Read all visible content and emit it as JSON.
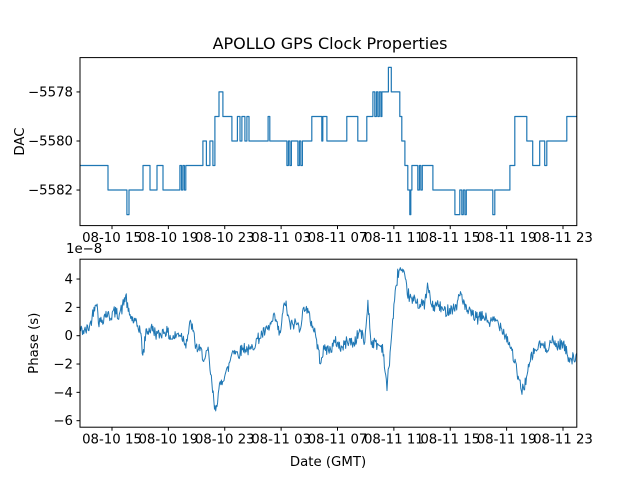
{
  "figure": {
    "title": "APOLLO GPS Clock Properties",
    "background": "#ffffff",
    "line_color": "#1f77b4",
    "text_color": "#000000",
    "legend": "none",
    "grid": false
  },
  "chart_data": [
    {
      "type": "line",
      "line_style": "step-post",
      "title": "APOLLO GPS Clock Properties",
      "xlabel": "",
      "ylabel": "DAC",
      "xlim": [
        12.73,
        47.98
      ],
      "ylim": [
        -5583.45,
        -5576.6
      ],
      "xtick_hours": [
        15,
        19,
        23,
        27,
        31,
        35,
        39,
        43,
        47
      ],
      "xtick_labels": [
        "08-10 15",
        "08-10 19",
        "08-10 23",
        "08-11 03",
        "08-11 07",
        "08-11 11",
        "08-11 15",
        "08-11 19",
        "08-11 23"
      ],
      "ytick_values": [
        -5578,
        -5580,
        -5582
      ],
      "ytick_labels": [
        "−5578",
        "−5580",
        "−5582"
      ],
      "steps": [
        [
          12.73,
          -5581
        ],
        [
          14.72,
          -5582
        ],
        [
          16.06,
          -5583
        ],
        [
          16.21,
          -5582
        ],
        [
          17.2,
          -5581
        ],
        [
          17.7,
          -5582
        ],
        [
          18.19,
          -5581
        ],
        [
          18.62,
          -5582
        ],
        [
          19.82,
          -5581
        ],
        [
          19.93,
          -5582
        ],
        [
          20.03,
          -5581
        ],
        [
          20.14,
          -5582
        ],
        [
          20.24,
          -5581
        ],
        [
          21.45,
          -5580
        ],
        [
          21.7,
          -5581
        ],
        [
          21.95,
          -5580
        ],
        [
          22.16,
          -5581
        ],
        [
          22.3,
          -5579
        ],
        [
          22.59,
          -5578
        ],
        [
          22.87,
          -5579
        ],
        [
          23.51,
          -5580
        ],
        [
          23.9,
          -5579
        ],
        [
          24.08,
          -5580
        ],
        [
          24.22,
          -5579
        ],
        [
          24.43,
          -5580
        ],
        [
          24.57,
          -5579
        ],
        [
          24.72,
          -5580
        ],
        [
          26.08,
          -5579
        ],
        [
          26.2,
          -5580
        ],
        [
          27.41,
          -5581
        ],
        [
          27.52,
          -5580
        ],
        [
          27.62,
          -5581
        ],
        [
          27.73,
          -5580
        ],
        [
          28.19,
          -5581
        ],
        [
          28.3,
          -5580
        ],
        [
          28.4,
          -5581
        ],
        [
          28.51,
          -5580
        ],
        [
          29.18,
          -5579
        ],
        [
          29.89,
          -5580
        ],
        [
          29.96,
          -5579
        ],
        [
          30.25,
          -5580
        ],
        [
          31.66,
          -5579
        ],
        [
          32.44,
          -5580
        ],
        [
          33.08,
          -5579
        ],
        [
          33.51,
          -5578
        ],
        [
          33.65,
          -5579
        ],
        [
          33.76,
          -5578
        ],
        [
          33.86,
          -5579
        ],
        [
          33.97,
          -5578
        ],
        [
          34.08,
          -5579
        ],
        [
          34.15,
          -5578
        ],
        [
          34.61,
          -5577
        ],
        [
          34.82,
          -5578
        ],
        [
          35.42,
          -5579
        ],
        [
          35.56,
          -5580
        ],
        [
          35.78,
          -5581
        ],
        [
          35.99,
          -5582
        ],
        [
          36.13,
          -5583
        ],
        [
          36.2,
          -5582
        ],
        [
          36.28,
          -5581
        ],
        [
          36.7,
          -5582
        ],
        [
          36.81,
          -5581
        ],
        [
          36.91,
          -5582
        ],
        [
          37.02,
          -5581
        ],
        [
          37.77,
          -5582
        ],
        [
          39.33,
          -5583
        ],
        [
          39.68,
          -5582
        ],
        [
          39.82,
          -5583
        ],
        [
          39.93,
          -5582
        ],
        [
          40.04,
          -5583
        ],
        [
          40.14,
          -5582
        ],
        [
          42.02,
          -5583
        ],
        [
          42.16,
          -5582
        ],
        [
          43.23,
          -5581
        ],
        [
          43.58,
          -5579
        ],
        [
          44.43,
          -5580
        ],
        [
          44.85,
          -5581
        ],
        [
          45.35,
          -5580
        ],
        [
          45.7,
          -5581
        ],
        [
          45.85,
          -5580
        ],
        [
          47.27,
          -5579
        ]
      ]
    },
    {
      "type": "line",
      "line_style": "noisy",
      "xlabel": "Date (GMT)",
      "ylabel": "Phase (s)",
      "y_offset_text": "1e−8",
      "y_scale": 1e-08,
      "xlim": [
        12.73,
        47.98
      ],
      "ylim": [
        -6.46,
        5.4
      ],
      "xtick_hours": [
        15,
        19,
        23,
        27,
        31,
        35,
        39,
        43,
        47
      ],
      "xtick_labels": [
        "08-10 15",
        "08-10 19",
        "08-10 23",
        "08-11 03",
        "08-11 07",
        "08-11 11",
        "08-11 15",
        "08-11 19",
        "08-11 23"
      ],
      "ytick_values": [
        4,
        2,
        0,
        -2,
        -4,
        -6
      ],
      "ytick_labels": [
        "4",
        "2",
        "0",
        "−2",
        "−4",
        "−6"
      ],
      "noise_amplitude": 0.42,
      "noise_step": 0.045,
      "noise_seed": 42,
      "anchors": [
        [
          12.73,
          0.4
        ],
        [
          13.1,
          0.3
        ],
        [
          13.44,
          0.7
        ],
        [
          13.87,
          2.6
        ],
        [
          14.08,
          0.9
        ],
        [
          14.36,
          1.2
        ],
        [
          14.57,
          1.6
        ],
        [
          14.86,
          1.3
        ],
        [
          15.14,
          1.7
        ],
        [
          15.43,
          1.5
        ],
        [
          15.71,
          1.9
        ],
        [
          15.99,
          2.9
        ],
        [
          16.13,
          1.7
        ],
        [
          16.42,
          1.2
        ],
        [
          16.7,
          0.8
        ],
        [
          16.99,
          0.5
        ],
        [
          17.2,
          -1.5
        ],
        [
          17.41,
          0.3
        ],
        [
          17.84,
          0.5
        ],
        [
          18.26,
          0.0
        ],
        [
          18.76,
          0.4
        ],
        [
          19.26,
          -0.2
        ],
        [
          19.82,
          0.2
        ],
        [
          20.25,
          -0.5
        ],
        [
          20.6,
          1.0
        ],
        [
          20.96,
          -0.8
        ],
        [
          21.38,
          -1.2
        ],
        [
          21.6,
          -1.8
        ],
        [
          21.81,
          -1.0
        ],
        [
          22.09,
          -3.5
        ],
        [
          22.3,
          -5.3
        ],
        [
          22.45,
          -4.6
        ],
        [
          22.66,
          -3.6
        ],
        [
          22.94,
          -2.8
        ],
        [
          23.23,
          -2.4
        ],
        [
          23.58,
          -0.9
        ],
        [
          23.94,
          -1.3
        ],
        [
          24.36,
          -0.8
        ],
        [
          24.79,
          -1.1
        ],
        [
          25.21,
          -0.4
        ],
        [
          25.64,
          0.1
        ],
        [
          26.06,
          0.4
        ],
        [
          26.56,
          1.3
        ],
        [
          26.91,
          0.0
        ],
        [
          27.27,
          2.5
        ],
        [
          27.62,
          0.7
        ],
        [
          28.05,
          0.9
        ],
        [
          28.33,
          0.6
        ],
        [
          28.69,
          2.2
        ],
        [
          29.04,
          1.2
        ],
        [
          29.4,
          0.3
        ],
        [
          29.75,
          -1.7
        ],
        [
          30.11,
          -0.9
        ],
        [
          30.46,
          -1.0
        ],
        [
          30.89,
          -0.4
        ],
        [
          31.31,
          -0.9
        ],
        [
          31.74,
          -0.3
        ],
        [
          32.16,
          -0.6
        ],
        [
          32.59,
          0.4
        ],
        [
          32.94,
          -0.5
        ],
        [
          33.16,
          2.5
        ],
        [
          33.37,
          -0.4
        ],
        [
          33.79,
          -0.6
        ],
        [
          34.22,
          -0.8
        ],
        [
          34.5,
          -3.8
        ],
        [
          34.71,
          -1.5
        ],
        [
          35.0,
          2.0
        ],
        [
          35.28,
          4.4
        ],
        [
          35.43,
          4.7
        ],
        [
          35.71,
          4.2
        ],
        [
          35.99,
          3.0
        ],
        [
          36.28,
          2.4
        ],
        [
          36.56,
          2.6
        ],
        [
          36.84,
          2.1
        ],
        [
          37.2,
          2.3
        ],
        [
          37.41,
          3.5
        ],
        [
          37.7,
          2.0
        ],
        [
          38.12,
          2.2
        ],
        [
          38.55,
          1.7
        ],
        [
          38.97,
          1.9
        ],
        [
          39.4,
          2.0
        ],
        [
          39.75,
          3.1
        ],
        [
          40.11,
          1.8
        ],
        [
          40.53,
          1.5
        ],
        [
          40.96,
          1.2
        ],
        [
          41.38,
          1.4
        ],
        [
          41.81,
          0.9
        ],
        [
          42.23,
          1.1
        ],
        [
          42.66,
          0.6
        ],
        [
          43.09,
          -0.3
        ],
        [
          43.37,
          -1.0
        ],
        [
          43.65,
          -2.2
        ],
        [
          43.87,
          -3.2
        ],
        [
          44.08,
          -3.9
        ],
        [
          44.29,
          -3.4
        ],
        [
          44.5,
          -2.6
        ],
        [
          44.79,
          -1.4
        ],
        [
          45.07,
          -1.0
        ],
        [
          45.43,
          -0.6
        ],
        [
          45.78,
          -0.9
        ],
        [
          46.21,
          -0.4
        ],
        [
          46.63,
          -0.7
        ],
        [
          46.99,
          -0.5
        ],
        [
          47.34,
          -1.4
        ],
        [
          47.62,
          -1.6
        ],
        [
          47.98,
          -1.5
        ]
      ]
    }
  ]
}
